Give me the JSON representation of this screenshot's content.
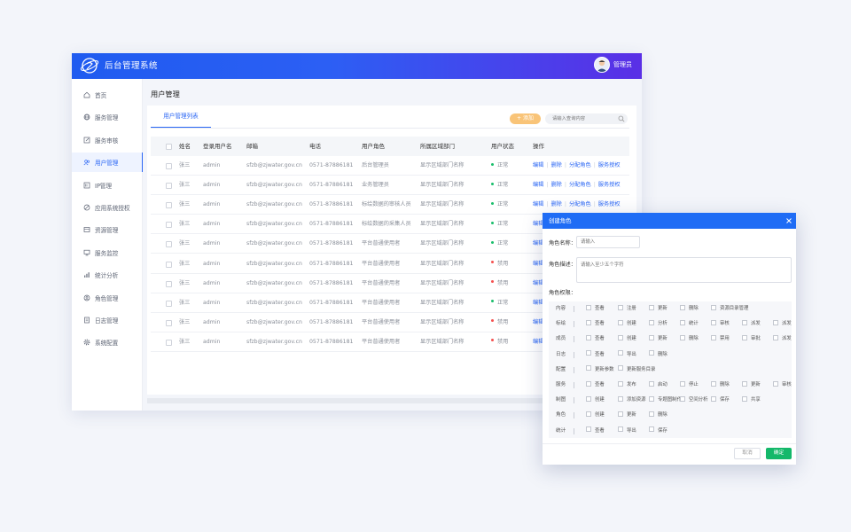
{
  "header": {
    "app_title": "后台管理系统",
    "admin_name": "管理员"
  },
  "sidebar": {
    "items": [
      {
        "label": "首页",
        "icon": "home-icon"
      },
      {
        "label": "服务管理",
        "icon": "globe-icon"
      },
      {
        "label": "服务审核",
        "icon": "edit-icon"
      },
      {
        "label": "用户管理",
        "icon": "users-icon",
        "active": true
      },
      {
        "label": "IP管理",
        "icon": "ip-icon"
      },
      {
        "label": "应用系统授权",
        "icon": "key-icon"
      },
      {
        "label": "资源管理",
        "icon": "folder-icon"
      },
      {
        "label": "服务监控",
        "icon": "monitor-icon"
      },
      {
        "label": "统计分析",
        "icon": "chart-icon"
      },
      {
        "label": "角色管理",
        "icon": "role-icon"
      },
      {
        "label": "日志管理",
        "icon": "log-icon"
      },
      {
        "label": "系统配置",
        "icon": "gear-icon"
      }
    ]
  },
  "main": {
    "page_title": "用户管理",
    "tab_label": "用户管理列表",
    "add_label": "+ 添加",
    "search_placeholder": "请输入查询内容",
    "columns": [
      "姓名",
      "登录用户名",
      "邮箱",
      "电话",
      "用户角色",
      "所属区域部门",
      "用户状态",
      "操作"
    ],
    "rows": [
      {
        "name": "张三",
        "login": "admin",
        "email": "sfzb@zjwater.gov.cn",
        "phone": "0571-87886181",
        "role": "后台管理员",
        "dept": "显示区域部门名称",
        "status": "正常",
        "status_color": "#19be6b",
        "ops": [
          "编辑",
          "删除",
          "分配角色",
          "服务授权"
        ]
      },
      {
        "name": "张三",
        "login": "admin",
        "email": "sfzb@zjwater.gov.cn",
        "phone": "0571-87886181",
        "role": "业务管理员",
        "dept": "显示区域部门名称",
        "status": "正常",
        "status_color": "#19be6b",
        "ops": [
          "编辑",
          "删除",
          "分配角色",
          "服务授权"
        ]
      },
      {
        "name": "张三",
        "login": "admin",
        "email": "sfzb@zjwater.gov.cn",
        "phone": "0571-87886181",
        "role": "标绘数据的审核人员",
        "dept": "显示区域部门名称",
        "status": "正常",
        "status_color": "#19be6b",
        "ops": [
          "编辑",
          "删除",
          "分配角色",
          "服务授权"
        ]
      },
      {
        "name": "张三",
        "login": "admin",
        "email": "sfzb@zjwater.gov.cn",
        "phone": "0571-87886181",
        "role": "标绘数据的采集人员",
        "dept": "显示区域部门名称",
        "status": "正常",
        "status_color": "#19be6b",
        "ops": [
          "编辑"
        ]
      },
      {
        "name": "张三",
        "login": "admin",
        "email": "sfzb@zjwater.gov.cn",
        "phone": "0571-87886181",
        "role": "平台普通使用者",
        "dept": "显示区域部门名称",
        "status": "正常",
        "status_color": "#19be6b",
        "ops": [
          "编辑"
        ]
      },
      {
        "name": "张三",
        "login": "admin",
        "email": "sfzb@zjwater.gov.cn",
        "phone": "0571-87886181",
        "role": "平台普通使用者",
        "dept": "显示区域部门名称",
        "status": "禁用",
        "status_color": "#f5504f",
        "ops": [
          "编辑"
        ]
      },
      {
        "name": "张三",
        "login": "admin",
        "email": "sfzb@zjwater.gov.cn",
        "phone": "0571-87886181",
        "role": "平台普通使用者",
        "dept": "显示区域部门名称",
        "status": "禁用",
        "status_color": "#f5504f",
        "ops": [
          "编辑"
        ]
      },
      {
        "name": "张三",
        "login": "admin",
        "email": "sfzb@zjwater.gov.cn",
        "phone": "0571-87886181",
        "role": "平台普通使用者",
        "dept": "显示区域部门名称",
        "status": "正常",
        "status_color": "#19be6b",
        "ops": [
          "编辑"
        ]
      },
      {
        "name": "张三",
        "login": "admin",
        "email": "sfzb@zjwater.gov.cn",
        "phone": "0571-87886181",
        "role": "平台普通使用者",
        "dept": "显示区域部门名称",
        "status": "禁用",
        "status_color": "#f5504f",
        "ops": [
          "编辑"
        ]
      },
      {
        "name": "张三",
        "login": "admin",
        "email": "sfzb@zjwater.gov.cn",
        "phone": "0571-87886181",
        "role": "平台普通使用者",
        "dept": "显示区域部门名称",
        "status": "禁用",
        "status_color": "#f5504f",
        "ops": [
          "编辑"
        ]
      }
    ]
  },
  "dialog": {
    "title": "创建角色",
    "name_label": "角色名称：",
    "name_placeholder": "请输入",
    "desc_label": "角色描述：",
    "desc_placeholder": "请输入至少五个字符",
    "perm_label": "角色权限：",
    "permissions": [
      {
        "category": "内容",
        "options": [
          "查看",
          "注册",
          "更新",
          "删除",
          "资源目录管理"
        ]
      },
      {
        "category": "标绘",
        "options": [
          "查看",
          "创建",
          "分析",
          "统计",
          "审核",
          "派发",
          "派发"
        ]
      },
      {
        "category": "成员",
        "options": [
          "查看",
          "创建",
          "更新",
          "删除",
          "禁用",
          "审批",
          "派发"
        ]
      },
      {
        "category": "日志",
        "options": [
          "查看",
          "导出",
          "删除"
        ]
      },
      {
        "category": "配置",
        "options": [
          "更新参数",
          "更新服务目录"
        ]
      },
      {
        "category": "服务",
        "options": [
          "查看",
          "发布",
          "启动",
          "停止",
          "删除",
          "更新",
          "审核"
        ]
      },
      {
        "category": "制图",
        "options": [
          "创建",
          "添加资源",
          "专题图制作",
          "空间分析",
          "保存",
          "共享"
        ]
      },
      {
        "category": "角色",
        "options": [
          "创建",
          "更新",
          "删除"
        ]
      },
      {
        "category": "统计",
        "options": [
          "查看",
          "导出",
          "保存"
        ]
      }
    ],
    "cancel_label": "取消",
    "ok_label": "确定"
  },
  "colors": {
    "primary": "#2a66f4",
    "header_gradient_end": "#5a2fe6",
    "add_button": "#f9c478",
    "ok_button": "#14b86a",
    "status_ok": "#19be6b",
    "status_disabled": "#f5504f"
  }
}
